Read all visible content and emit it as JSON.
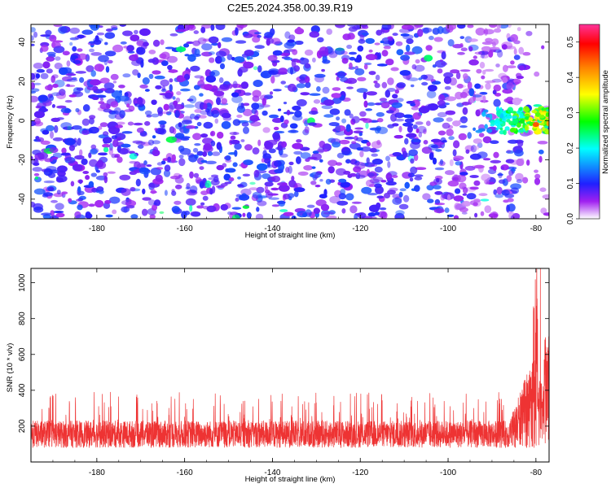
{
  "title": "C2E5.2024.358.00.39.R19",
  "chart_data": [
    {
      "id": "spectrogram",
      "type": "heatmap",
      "xlabel": "Height of straight line (km)",
      "ylabel": "Frequency (Hz)",
      "xlim": [
        -195,
        -77
      ],
      "ylim": [
        -50,
        49
      ],
      "xticks": [
        -180,
        -160,
        -140,
        -120,
        -100,
        -80
      ],
      "yticks": [
        -40,
        -20,
        0,
        20,
        40
      ],
      "background_amplitude": 0.12,
      "signal": {
        "x_range": [
          -95,
          -77
        ],
        "frequency_center": 0,
        "frequency_halfwidth": 6,
        "peak_amplitude": 0.45,
        "peak_x": -80,
        "peak_frequency": -2
      },
      "colorbar": {
        "label": "Normalized spectral amplitude",
        "range": [
          0.0,
          0.55
        ],
        "ticks": [
          0.0,
          0.1,
          0.2,
          0.3,
          0.4,
          0.5
        ],
        "tick_labels": [
          "0.0",
          "0.1",
          "0.2",
          "0.3",
          "0.4",
          "0.5"
        ]
      }
    },
    {
      "id": "snr",
      "type": "line",
      "xlabel": "Height of straight line (km)",
      "ylabel": "SNR (10 * v/v)",
      "xlim": [
        -195,
        -77
      ],
      "ylim": [
        0,
        1080
      ],
      "xticks": [
        -180,
        -160,
        -140,
        -120,
        -100,
        -80
      ],
      "yticks": [
        200,
        400,
        600,
        800,
        1000
      ],
      "series_color": "#ee3333",
      "baseline_band": [
        80,
        230
      ],
      "typical_spike_max": 390,
      "rise_start_x": -86,
      "near_end_max": 700,
      "end_peak_x": -79,
      "end_peak_value": 1080
    }
  ],
  "colors": {
    "signal": "#ee3333",
    "background": "#ffffff",
    "axis": "#000000"
  }
}
